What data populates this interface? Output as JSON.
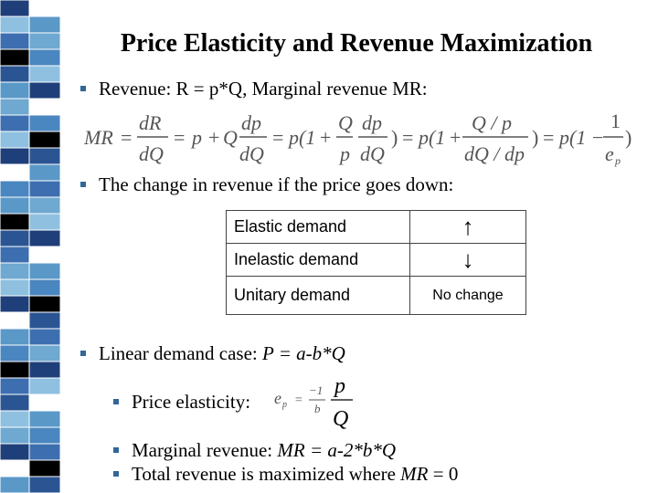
{
  "title": "Price Elasticity and Revenue Maximization",
  "bullets": {
    "b1": "Revenue: R = p*Q, Marginal revenue MR:",
    "b2": "The change in revenue if the price goes down:",
    "b3_prefix": "Linear demand case: ",
    "b3_formula": "P = a-b*Q",
    "s1": "Price elasticity:",
    "s2_prefix": "Marginal revenue: ",
    "s2_formula": "MR = a-2*b*Q",
    "s3_prefix": "Total revenue is maximized where ",
    "s3_mr": "MR",
    "s3_suffix": " = 0"
  },
  "formula": {
    "mr": "MR",
    "eq": "=",
    "dR": "dR",
    "dQ": "dQ",
    "p": "p",
    "plus": "+",
    "Q": "Q",
    "dp": "dp",
    "p1": "p(1",
    "p1b": "p(1",
    "p1c": "p(1",
    "close": ")",
    "Qoverp": "Q / p",
    "dQoverdp": "dQ / dp",
    "one": "1",
    "ep": "e",
    "ep_sub": "p"
  },
  "table": {
    "rows": [
      {
        "label": "Elastic demand",
        "value": "↑"
      },
      {
        "label": "Inelastic demand",
        "value": "↓"
      },
      {
        "label": "Unitary demand",
        "value": "No change"
      }
    ]
  },
  "elasticity": {
    "ep": "e",
    "ep_sub": "p",
    "eq": "=",
    "neg1": "−1",
    "b": "b",
    "p": "p",
    "Q": "Q"
  },
  "colors": {
    "bullet": "#336699",
    "strip": [
      "#1f3f7a",
      "#3d6fb0",
      "#5a98c8",
      "#8fc0e0",
      "#000000",
      "#ffffff",
      "#6fa8d0",
      "#2b5592",
      "#4a86bf"
    ]
  }
}
